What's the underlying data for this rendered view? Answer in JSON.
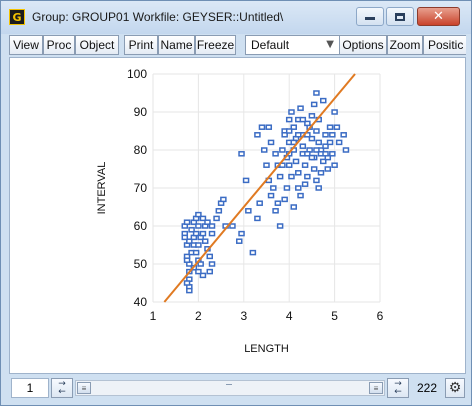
{
  "window": {
    "icon_letter": "G",
    "title": "Group: GROUP01   Workfile: GEYSER::Untitled\\",
    "close_glyph": "✕"
  },
  "toolbar": {
    "view": "View",
    "proc": "Proc",
    "object": "Object",
    "print": "Print",
    "name": "Name",
    "freeze": "Freeze",
    "display_select": "Default",
    "options": "Options",
    "zoom": "Zoom",
    "position": "Positic"
  },
  "statusbar": {
    "current_obs": "1",
    "obs_count": "222"
  },
  "icons": [
    "group-icon",
    "minimize-icon",
    "maximize-icon",
    "close-icon",
    "dropdown-arrow-icon",
    "left-arrow-icon",
    "right-arrow-icon",
    "gear-icon"
  ],
  "colors": {
    "marker": "#3b6cc4",
    "fit_line": "#e07a22",
    "grid": "#e6e6e6"
  },
  "chart_data": {
    "type": "scatter",
    "xlabel": "LENGTH",
    "ylabel": "INTERVAL",
    "xlim": [
      1,
      6
    ],
    "ylim": [
      40,
      100
    ],
    "xticks": [
      1,
      2,
      3,
      4,
      5,
      6
    ],
    "yticks": [
      40,
      50,
      60,
      70,
      80,
      90,
      100
    ],
    "grid": true,
    "points": [
      [
        1.7,
        60
      ],
      [
        1.7,
        58
      ],
      [
        1.75,
        55
      ],
      [
        1.75,
        52
      ],
      [
        1.8,
        50
      ],
      [
        1.8,
        48
      ],
      [
        1.75,
        51
      ],
      [
        1.85,
        53
      ],
      [
        1.8,
        56
      ],
      [
        1.9,
        57
      ],
      [
        1.85,
        59
      ],
      [
        1.9,
        61
      ],
      [
        1.95,
        62
      ],
      [
        2.0,
        63
      ],
      [
        2.0,
        60
      ],
      [
        1.95,
        58
      ],
      [
        1.9,
        55
      ],
      [
        1.95,
        53
      ],
      [
        2.0,
        51
      ],
      [
        2.05,
        50
      ],
      [
        2.0,
        55
      ],
      [
        2.05,
        57
      ],
      [
        2.1,
        58
      ],
      [
        2.15,
        60
      ],
      [
        2.1,
        62
      ],
      [
        2.2,
        61
      ],
      [
        2.15,
        56
      ],
      [
        2.2,
        54
      ],
      [
        2.25,
        52
      ],
      [
        2.3,
        50
      ],
      [
        2.25,
        48
      ],
      [
        2.1,
        47
      ],
      [
        1.8,
        46
      ],
      [
        1.8,
        44
      ],
      [
        1.8,
        43
      ],
      [
        1.75,
        45
      ],
      [
        1.9,
        49
      ],
      [
        1.7,
        57
      ],
      [
        1.75,
        61
      ],
      [
        2.0,
        48
      ],
      [
        2.3,
        60
      ],
      [
        2.4,
        62
      ],
      [
        2.45,
        64
      ],
      [
        2.5,
        66
      ],
      [
        2.55,
        67
      ],
      [
        2.3,
        58
      ],
      [
        2.6,
        60
      ],
      [
        2.75,
        60
      ],
      [
        2.9,
        56
      ],
      [
        2.95,
        58
      ],
      [
        3.05,
        72
      ],
      [
        2.95,
        79
      ],
      [
        3.1,
        64
      ],
      [
        3.2,
        53
      ],
      [
        3.3,
        62
      ],
      [
        3.35,
        66
      ],
      [
        3.3,
        84
      ],
      [
        3.4,
        86
      ],
      [
        3.45,
        80
      ],
      [
        3.5,
        76
      ],
      [
        3.55,
        72
      ],
      [
        3.6,
        68
      ],
      [
        3.65,
        70
      ],
      [
        3.55,
        86
      ],
      [
        3.6,
        82
      ],
      [
        3.7,
        79
      ],
      [
        3.75,
        76
      ],
      [
        3.8,
        73
      ],
      [
        3.75,
        66
      ],
      [
        3.7,
        64
      ],
      [
        3.8,
        60
      ],
      [
        3.85,
        80
      ],
      [
        3.9,
        85
      ],
      [
        3.95,
        78
      ],
      [
        4.0,
        82
      ],
      [
        4.0,
        88
      ],
      [
        4.05,
        90
      ],
      [
        4.1,
        86
      ],
      [
        4.1,
        80
      ],
      [
        4.15,
        77
      ],
      [
        4.2,
        74
      ],
      [
        4.2,
        70
      ],
      [
        4.25,
        68
      ],
      [
        4.15,
        83
      ],
      [
        4.2,
        88
      ],
      [
        4.25,
        91
      ],
      [
        4.3,
        84
      ],
      [
        4.3,
        79
      ],
      [
        4.35,
        76
      ],
      [
        4.4,
        73
      ],
      [
        4.35,
        71
      ],
      [
        4.45,
        80
      ],
      [
        4.5,
        83
      ],
      [
        4.45,
        86
      ],
      [
        4.5,
        89
      ],
      [
        4.55,
        78
      ],
      [
        4.55,
        75
      ],
      [
        4.6,
        72
      ],
      [
        4.6,
        85
      ],
      [
        4.65,
        82
      ],
      [
        4.65,
        88
      ],
      [
        4.7,
        80
      ],
      [
        4.75,
        77
      ],
      [
        4.7,
        74
      ],
      [
        4.75,
        93
      ],
      [
        4.8,
        84
      ],
      [
        4.8,
        81
      ],
      [
        4.85,
        78
      ],
      [
        4.85,
        75
      ],
      [
        4.9,
        86
      ],
      [
        4.9,
        82
      ],
      [
        4.95,
        79
      ],
      [
        5.0,
        76
      ],
      [
        5.0,
        90
      ],
      [
        4.6,
        95
      ],
      [
        4.55,
        92
      ],
      [
        4.4,
        87
      ],
      [
        4.0,
        76
      ],
      [
        4.05,
        73
      ],
      [
        3.95,
        70
      ],
      [
        3.9,
        67
      ],
      [
        4.0,
        79
      ],
      [
        4.1,
        82
      ],
      [
        4.3,
        81
      ],
      [
        4.4,
        79
      ],
      [
        4.5,
        78
      ],
      [
        4.6,
        80
      ],
      [
        4.7,
        79
      ],
      [
        4.8,
        79
      ],
      [
        4.4,
        84
      ],
      [
        4.2,
        84
      ],
      [
        3.9,
        84
      ],
      [
        5.2,
        84
      ],
      [
        5.25,
        80
      ],
      [
        4.95,
        84
      ],
      [
        4.1,
        65
      ],
      [
        4.3,
        88
      ],
      [
        4.0,
        85
      ],
      [
        3.85,
        76
      ],
      [
        4.65,
        70
      ],
      [
        5.05,
        86
      ],
      [
        5.1,
        82
      ]
    ],
    "fit_line": {
      "x": [
        1.25,
        5.45
      ],
      "y": [
        40,
        100
      ]
    }
  }
}
